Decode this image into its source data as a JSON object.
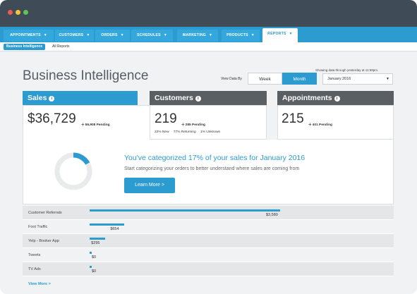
{
  "nav": {
    "tabs": [
      {
        "label": "APPOINTMENTS"
      },
      {
        "label": "CUSTOMERS"
      },
      {
        "label": "ORDERS"
      },
      {
        "label": "SCHEDULES"
      },
      {
        "label": "MARKETING"
      },
      {
        "label": "PRODUCTS"
      },
      {
        "label": "REPORTS"
      }
    ],
    "subtabs": [
      {
        "label": "Business Intelligence"
      },
      {
        "label": "All Reports"
      }
    ]
  },
  "page": {
    "title": "Business Intelligence",
    "view_label": "View Data By",
    "week_label": "Week",
    "month_label": "Month",
    "showing_note": "Showing data through yesterday at 11:59pm.",
    "selected_month": "January 2016"
  },
  "cards": {
    "sales": {
      "title": "Sales",
      "value": "$36,729",
      "pending": "$6,908 Pending"
    },
    "customers": {
      "title": "Customers",
      "value": "219",
      "pending": "285 Pending",
      "new": "22% New",
      "returning": "77% Returning",
      "unknown": "1% Unknown"
    },
    "appointments": {
      "title": "Appointments",
      "value": "215",
      "pending": "401 Pending"
    }
  },
  "promo": {
    "title": "You've categorized 17% of your sales for January 2016",
    "subtitle": "Start categorizing your orders to better understand where sales are coming from",
    "button": "Learn More >",
    "categorized_fraction": 0.17
  },
  "sources": {
    "rows": [
      {
        "label": "Customer Referrals",
        "value": "$3,580",
        "amount": 3580
      },
      {
        "label": "Foot Traffic",
        "value": "$654",
        "amount": 654
      },
      {
        "label": "Yelp - Booker App",
        "value": "$295",
        "amount": 295
      },
      {
        "label": "Tweets",
        "value": "$0",
        "amount": 0
      },
      {
        "label": "TV Ads",
        "value": "$0",
        "amount": 0
      }
    ],
    "view_more": "View More >"
  },
  "colors": {
    "accent": "#2b9bd0",
    "dark_header": "#5a5f64",
    "donut_track": "#e8eaec"
  }
}
